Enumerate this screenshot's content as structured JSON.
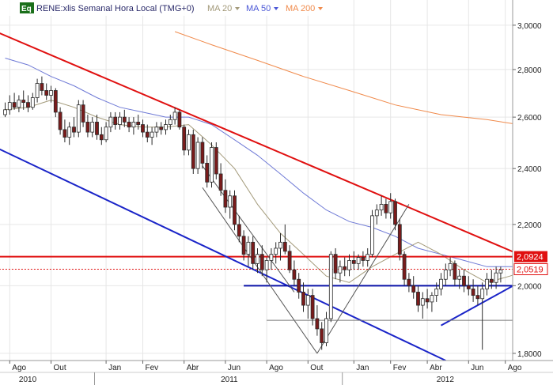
{
  "header": {
    "badge": "Eq",
    "title": "RENE:xlis Semanal Hora Local (TMG+0)",
    "ma_20": "MA 20",
    "ma_50": "MA 50",
    "ma_200": "MA 200",
    "dropdown_icon": "triangle-down-icon"
  },
  "colors": {
    "background": "#ffffff",
    "grid": "#e6e6e6",
    "up_candle": "#ffffff",
    "down_candle": "#7a1b1b",
    "candle_outline": "#2a2a2a",
    "ma20": "#a39a7a",
    "ma50": "#6f7ad6",
    "ma200": "#f08a4b",
    "trend_red": "#e01010",
    "trend_blue": "#1a24c8",
    "flat_blue": "#0a12a8",
    "channel_gray": "#555555",
    "label_red_bg": "#e01010",
    "badge_bg": "#1a6f1a",
    "title_color": "#2a2a6a"
  },
  "chart_data": {
    "type": "candlestick",
    "title": "RENE:xlis Semanal Hora Local (TMG+0)",
    "y_axis": {
      "ticks": [
        "3,0000",
        "2,8000",
        "2,6000",
        "2,4000",
        "2,2000",
        "2,0000",
        "1,8000"
      ],
      "tick_values": [
        3.0,
        2.8,
        2.6,
        2.4,
        2.2,
        2.0,
        1.8
      ],
      "range": [
        1.78,
        3.12
      ],
      "scale": "log"
    },
    "x_axis": {
      "month_labels": [
        "Ago",
        "Out",
        "Jan",
        "Fev",
        "Abr",
        "Jun",
        "Ago",
        "Out",
        "Jan",
        "Fev",
        "Abr",
        "Jun",
        "Ago"
      ],
      "month_index": [
        1,
        10,
        22,
        30,
        39,
        48,
        57,
        66,
        76,
        84,
        92,
        101,
        109
      ],
      "year_labels": [
        "2010",
        "2011",
        "2012"
      ],
      "year_index": [
        3,
        47,
        94
      ]
    },
    "price_labels": [
      {
        "text": "2,0924",
        "value": 2.0924
      },
      {
        "text": "2,0519",
        "value": 2.0519
      }
    ],
    "candles": [
      [
        2.61,
        2.66,
        2.6,
        2.63
      ],
      [
        2.63,
        2.69,
        2.61,
        2.66
      ],
      [
        2.66,
        2.7,
        2.63,
        2.64
      ],
      [
        2.64,
        2.69,
        2.62,
        2.67
      ],
      [
        2.67,
        2.71,
        2.63,
        2.66
      ],
      [
        2.66,
        2.69,
        2.62,
        2.64
      ],
      [
        2.64,
        2.7,
        2.63,
        2.68
      ],
      [
        2.68,
        2.76,
        2.66,
        2.74
      ],
      [
        2.74,
        2.77,
        2.69,
        2.71
      ],
      [
        2.71,
        2.74,
        2.67,
        2.69
      ],
      [
        2.69,
        2.73,
        2.66,
        2.71
      ],
      [
        2.71,
        2.72,
        2.6,
        2.62
      ],
      [
        2.62,
        2.64,
        2.53,
        2.55
      ],
      [
        2.55,
        2.59,
        2.5,
        2.52
      ],
      [
        2.52,
        2.58,
        2.49,
        2.56
      ],
      [
        2.56,
        2.6,
        2.52,
        2.54
      ],
      [
        2.54,
        2.67,
        2.52,
        2.65
      ],
      [
        2.65,
        2.67,
        2.56,
        2.58
      ],
      [
        2.58,
        2.61,
        2.52,
        2.54
      ],
      [
        2.54,
        2.6,
        2.52,
        2.58
      ],
      [
        2.58,
        2.61,
        2.51,
        2.53
      ],
      [
        2.53,
        2.56,
        2.49,
        2.51
      ],
      [
        2.51,
        2.58,
        2.5,
        2.56
      ],
      [
        2.56,
        2.62,
        2.54,
        2.6
      ],
      [
        2.6,
        2.62,
        2.55,
        2.57
      ],
      [
        2.57,
        2.62,
        2.55,
        2.6
      ],
      [
        2.6,
        2.63,
        2.56,
        2.58
      ],
      [
        2.58,
        2.6,
        2.54,
        2.56
      ],
      [
        2.56,
        2.6,
        2.53,
        2.58
      ],
      [
        2.58,
        2.61,
        2.55,
        2.57
      ],
      [
        2.57,
        2.59,
        2.52,
        2.54
      ],
      [
        2.54,
        2.57,
        2.5,
        2.52
      ],
      [
        2.52,
        2.56,
        2.49,
        2.54
      ],
      [
        2.54,
        2.58,
        2.52,
        2.56
      ],
      [
        2.56,
        2.58,
        2.53,
        2.55
      ],
      [
        2.55,
        2.59,
        2.53,
        2.57
      ],
      [
        2.57,
        2.61,
        2.55,
        2.59
      ],
      [
        2.59,
        2.64,
        2.57,
        2.62
      ],
      [
        2.62,
        2.63,
        2.55,
        2.56
      ],
      [
        2.56,
        2.57,
        2.45,
        2.47
      ],
      [
        2.47,
        2.55,
        2.45,
        2.53
      ],
      [
        2.53,
        2.55,
        2.38,
        2.4
      ],
      [
        2.4,
        2.52,
        2.38,
        2.5
      ],
      [
        2.5,
        2.52,
        2.4,
        2.42
      ],
      [
        2.42,
        2.45,
        2.33,
        2.35
      ],
      [
        2.35,
        2.5,
        2.33,
        2.48
      ],
      [
        2.48,
        2.5,
        2.36,
        2.38
      ],
      [
        2.38,
        2.42,
        2.3,
        2.32
      ],
      [
        2.32,
        2.36,
        2.24,
        2.26
      ],
      [
        2.26,
        2.32,
        2.22,
        2.3
      ],
      [
        2.3,
        2.32,
        2.18,
        2.2
      ],
      [
        2.2,
        2.23,
        2.14,
        2.16
      ],
      [
        2.16,
        2.18,
        2.08,
        2.1
      ],
      [
        2.1,
        2.16,
        2.06,
        2.14
      ],
      [
        2.14,
        2.16,
        2.05,
        2.07
      ],
      [
        2.07,
        2.12,
        2.04,
        2.1
      ],
      [
        2.1,
        2.13,
        2.03,
        2.05
      ],
      [
        2.05,
        2.09,
        2.01,
        2.08
      ],
      [
        2.08,
        2.12,
        2.05,
        2.1
      ],
      [
        2.1,
        2.14,
        2.07,
        2.12
      ],
      [
        2.12,
        2.17,
        2.08,
        2.14
      ],
      [
        2.14,
        2.2,
        2.1,
        2.11
      ],
      [
        2.11,
        2.13,
        2.04,
        2.05
      ],
      [
        2.05,
        2.08,
        2.0,
        2.02
      ],
      [
        2.02,
        2.04,
        1.96,
        1.98
      ],
      [
        1.98,
        2.01,
        1.92,
        1.94
      ],
      [
        1.94,
        1.99,
        1.9,
        1.97
      ],
      [
        1.97,
        1.99,
        1.88,
        1.9
      ],
      [
        1.9,
        1.94,
        1.85,
        1.87
      ],
      [
        1.87,
        1.89,
        1.81,
        1.83
      ],
      [
        1.83,
        1.92,
        1.82,
        1.9
      ],
      [
        1.9,
        2.11,
        1.89,
        2.1
      ],
      [
        2.1,
        2.12,
        2.02,
        2.04
      ],
      [
        2.04,
        2.08,
        2.01,
        2.06
      ],
      [
        2.06,
        2.09,
        2.03,
        2.05
      ],
      [
        2.05,
        2.1,
        2.03,
        2.08
      ],
      [
        2.08,
        2.11,
        2.05,
        2.07
      ],
      [
        2.07,
        2.1,
        2.05,
        2.09
      ],
      [
        2.09,
        2.11,
        2.06,
        2.08
      ],
      [
        2.08,
        2.12,
        2.06,
        2.1
      ],
      [
        2.1,
        2.25,
        2.09,
        2.23
      ],
      [
        2.23,
        2.27,
        2.2,
        2.25
      ],
      [
        2.25,
        2.3,
        2.23,
        2.27
      ],
      [
        2.27,
        2.29,
        2.22,
        2.24
      ],
      [
        2.24,
        2.31,
        2.22,
        2.28
      ],
      [
        2.28,
        2.29,
        2.18,
        2.2
      ],
      [
        2.2,
        2.22,
        2.08,
        2.1
      ],
      [
        2.1,
        2.11,
        2.0,
        2.02
      ],
      [
        2.02,
        2.04,
        1.98,
        2.0
      ],
      [
        2.0,
        2.03,
        1.96,
        1.98
      ],
      [
        1.98,
        2.0,
        1.92,
        1.94
      ],
      [
        1.94,
        1.98,
        1.9,
        1.96
      ],
      [
        1.96,
        1.99,
        1.93,
        1.95
      ],
      [
        1.95,
        1.98,
        1.92,
        1.97
      ],
      [
        1.97,
        2.01,
        1.95,
        1.99
      ],
      [
        1.99,
        2.04,
        1.97,
        2.02
      ],
      [
        2.02,
        2.07,
        2.0,
        2.05
      ],
      [
        2.05,
        2.09,
        2.03,
        2.07
      ],
      [
        2.07,
        2.08,
        2.0,
        2.02
      ],
      [
        2.02,
        2.05,
        1.99,
        2.03
      ],
      [
        2.03,
        2.05,
        1.98,
        2.0
      ],
      [
        2.0,
        2.03,
        1.97,
        1.99
      ],
      [
        1.99,
        2.02,
        1.95,
        1.97
      ],
      [
        1.97,
        2.0,
        1.94,
        1.96
      ],
      [
        1.96,
        2.01,
        1.81,
        1.99
      ],
      [
        1.99,
        2.04,
        1.97,
        2.02
      ],
      [
        2.02,
        2.05,
        1.99,
        2.01
      ],
      [
        2.01,
        2.06,
        1.99,
        2.04
      ],
      [
        2.04,
        2.06,
        2.01,
        2.05
      ]
    ],
    "ma20": [
      [
        0,
        2.63
      ],
      [
        5,
        2.64
      ],
      [
        10,
        2.67
      ],
      [
        15,
        2.64
      ],
      [
        20,
        2.6
      ],
      [
        25,
        2.57
      ],
      [
        30,
        2.56
      ],
      [
        35,
        2.56
      ],
      [
        40,
        2.57
      ],
      [
        45,
        2.49
      ],
      [
        50,
        2.4
      ],
      [
        55,
        2.27
      ],
      [
        60,
        2.17
      ],
      [
        65,
        2.1
      ],
      [
        70,
        2.03
      ],
      [
        75,
        2.01
      ],
      [
        80,
        2.06
      ],
      [
        85,
        2.1
      ],
      [
        90,
        2.14
      ],
      [
        95,
        2.1
      ],
      [
        100,
        2.05
      ],
      [
        105,
        2.01
      ],
      [
        110,
        2.03
      ],
      [
        112,
        2.04
      ]
    ],
    "ma50": [
      [
        0,
        2.85
      ],
      [
        5,
        2.82
      ],
      [
        10,
        2.77
      ],
      [
        15,
        2.73
      ],
      [
        20,
        2.68
      ],
      [
        25,
        2.64
      ],
      [
        30,
        2.62
      ],
      [
        35,
        2.6
      ],
      [
        40,
        2.6
      ],
      [
        45,
        2.57
      ],
      [
        50,
        2.51
      ],
      [
        55,
        2.45
      ],
      [
        60,
        2.38
      ],
      [
        65,
        2.31
      ],
      [
        70,
        2.25
      ],
      [
        75,
        2.21
      ],
      [
        80,
        2.19
      ],
      [
        85,
        2.16
      ],
      [
        90,
        2.12
      ],
      [
        95,
        2.1
      ],
      [
        100,
        2.08
      ],
      [
        105,
        2.06
      ],
      [
        110,
        2.06
      ],
      [
        112,
        2.06
      ]
    ],
    "ma200": [
      [
        37,
        2.97
      ],
      [
        45,
        2.91
      ],
      [
        55,
        2.84
      ],
      [
        65,
        2.77
      ],
      [
        75,
        2.71
      ],
      [
        85,
        2.65
      ],
      [
        95,
        2.61
      ],
      [
        105,
        2.59
      ],
      [
        112,
        2.57
      ]
    ],
    "trendlines": [
      {
        "name": "red-upper",
        "color": "#e01010",
        "from": [
          -2,
          2.97
        ],
        "to": [
          112,
          2.1
        ]
      },
      {
        "name": "red-horizontal",
        "color": "#e01010",
        "from": [
          -2,
          2.0924
        ],
        "to": [
          112,
          2.0924
        ]
      },
      {
        "name": "red-dotted",
        "color": "#e01010",
        "from": [
          -2,
          2.0519
        ],
        "to": [
          112,
          2.0519
        ],
        "dashed": true
      },
      {
        "name": "blue-lower",
        "color": "#1a24c8",
        "from": [
          -2,
          2.48
        ],
        "to": [
          96,
          1.78
        ]
      },
      {
        "name": "blue-horizontal",
        "color": "#0a12a8",
        "from": [
          52,
          2.0
        ],
        "to": [
          112,
          2.0
        ]
      },
      {
        "name": "blue-rising",
        "color": "#1a24c8",
        "from": [
          95,
          1.88
        ],
        "to": [
          112,
          2.01
        ]
      },
      {
        "name": "gray-V-left",
        "color": "#555555",
        "from": [
          43,
          2.33
        ],
        "to": [
          68,
          1.8
        ]
      },
      {
        "name": "gray-V-right",
        "color": "#555555",
        "from": [
          68,
          1.8
        ],
        "to": [
          88,
          2.27
        ]
      },
      {
        "name": "gray-horizontal",
        "color": "#777777",
        "from": [
          57,
          1.895
        ],
        "to": [
          112,
          1.895
        ]
      },
      {
        "name": "gray-down",
        "color": "#555555",
        "from": [
          43,
          2.41
        ],
        "to": [
          63,
          1.98
        ]
      }
    ]
  }
}
